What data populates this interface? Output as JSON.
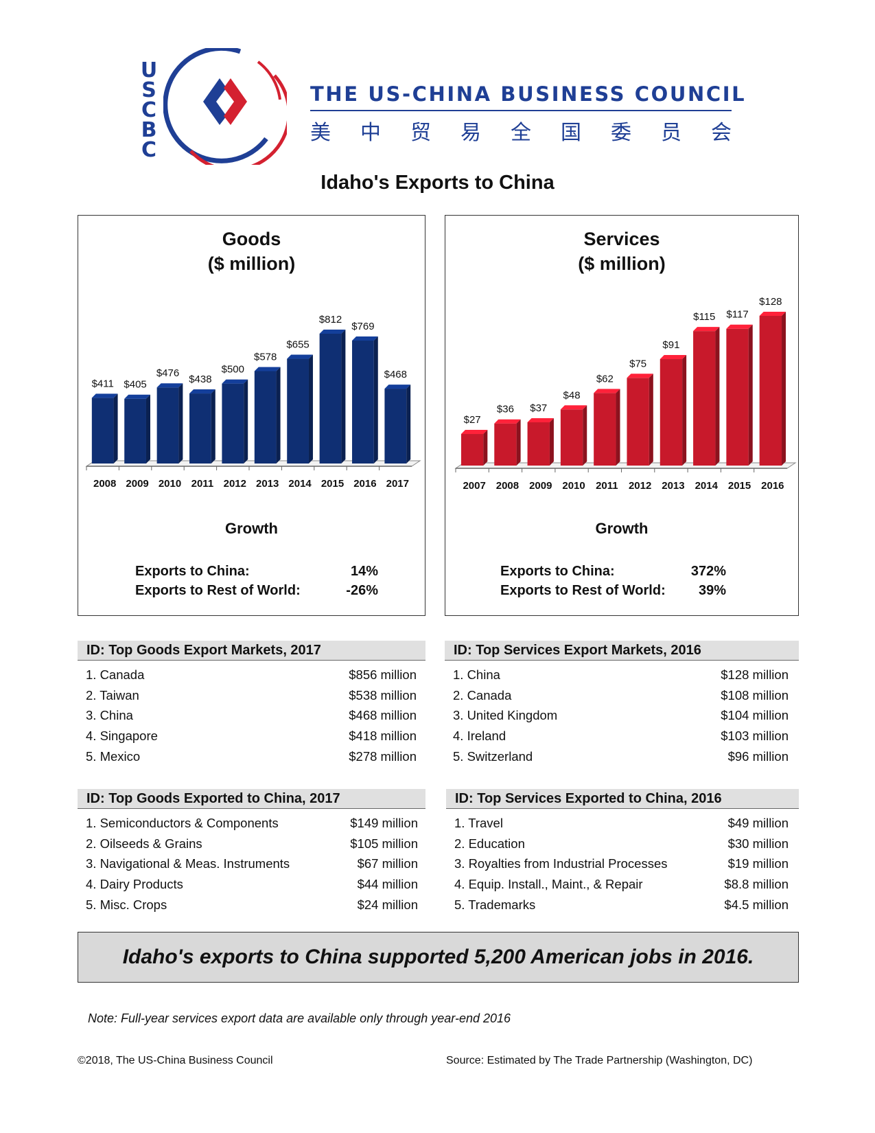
{
  "header": {
    "logo_letters": [
      "U",
      "S",
      "C",
      "B",
      "C"
    ],
    "org_name": "THE US-CHINA BUSINESS COUNCIL",
    "org_name_cn": [
      "美",
      "中",
      "贸",
      "易",
      "全",
      "国",
      "委",
      "员",
      "会"
    ]
  },
  "page_title": "Idaho's Exports to China",
  "colors": {
    "brand_blue": "#1f3f95",
    "brand_red": "#d42130",
    "goods_bar": "#0f2f73",
    "services_bar": "#c8192b"
  },
  "goods": {
    "title_line1": "Goods",
    "title_line2": "($ million)",
    "growth_title": "Growth",
    "growth": [
      {
        "label": "Exports to China:",
        "value": "14%"
      },
      {
        "label": "Exports to Rest of World:",
        "value": "-26%"
      }
    ]
  },
  "services": {
    "title_line1": "Services",
    "title_line2": "($ million)",
    "growth_title": "Growth",
    "growth": [
      {
        "label": "Exports to China:",
        "value": "372%"
      },
      {
        "label": "Exports to Rest of World:",
        "value": "39%"
      }
    ]
  },
  "chart_data": [
    {
      "type": "bar",
      "title": "Goods ($ million)",
      "categories": [
        "2008",
        "2009",
        "2010",
        "2011",
        "2012",
        "2013",
        "2014",
        "2015",
        "2016",
        "2017"
      ],
      "values": [
        411,
        405,
        476,
        438,
        500,
        578,
        655,
        812,
        769,
        468
      ],
      "labels": [
        "$411",
        "$405",
        "$476",
        "$438",
        "$500",
        "$578",
        "$655",
        "$812",
        "$769",
        "$468"
      ],
      "ylim": [
        0,
        812
      ],
      "grid": false
    },
    {
      "type": "bar",
      "title": "Services ($ million)",
      "categories": [
        "2007",
        "2008",
        "2009",
        "2010",
        "2011",
        "2012",
        "2013",
        "2014",
        "2015",
        "2016"
      ],
      "values": [
        27,
        36,
        37,
        48,
        62,
        75,
        91,
        115,
        117,
        128
      ],
      "labels": [
        "$27",
        "$36",
        "$37",
        "$48",
        "$62",
        "$75",
        "$91",
        "$115",
        "$117",
        "$128"
      ],
      "ylim": [
        0,
        128
      ],
      "grid": false
    }
  ],
  "sections": {
    "goods_markets": {
      "header": "ID: Top Goods Export Markets, 2017",
      "rows": [
        {
          "label": "1. Canada",
          "value": "$856 million"
        },
        {
          "label": "2. Taiwan",
          "value": "$538 million"
        },
        {
          "label": "3. China",
          "value": "$468 million"
        },
        {
          "label": "4. Singapore",
          "value": "$418 million"
        },
        {
          "label": "5. Mexico",
          "value": "$278 million"
        }
      ]
    },
    "services_markets": {
      "header": "ID: Top Services Export Markets, 2016",
      "rows": [
        {
          "label": "1. China",
          "value": "$128 million"
        },
        {
          "label": "2. Canada",
          "value": "$108 million"
        },
        {
          "label": "3. United Kingdom",
          "value": "$104 million"
        },
        {
          "label": "4. Ireland",
          "value": "$103 million"
        },
        {
          "label": "5. Switzerland",
          "value": "$96 million"
        }
      ]
    },
    "goods_to_china": {
      "header": "ID: Top Goods Exported to China, 2017",
      "rows": [
        {
          "label": "1. Semiconductors & Components",
          "value": "$149 million"
        },
        {
          "label": "2. Oilseeds & Grains",
          "value": "$105 million"
        },
        {
          "label": "3. Navigational & Meas. Instruments",
          "value": "$67 million"
        },
        {
          "label": "4. Dairy Products",
          "value": "$44 million"
        },
        {
          "label": "5. Misc. Crops",
          "value": "$24 million"
        }
      ]
    },
    "services_to_china": {
      "header": "ID: Top Services Exported to China, 2016",
      "rows": [
        {
          "label": "1. Travel",
          "value": "$49 million"
        },
        {
          "label": "2. Education",
          "value": "$30 million"
        },
        {
          "label": "3. Royalties from Industrial Processes",
          "value": "$19 million"
        },
        {
          "label": "4. Equip. Install., Maint., & Repair",
          "value": "$8.8 million"
        },
        {
          "label": "5. Trademarks",
          "value": "$4.5 million"
        }
      ]
    }
  },
  "jobs_statement": "Idaho's exports to China supported 5,200 American jobs in 2016.",
  "note": "Note: Full-year services export data are available only through year-end 2016",
  "footer": {
    "copyright": "©2018, The US-China Business Council",
    "source": "Source: Estimated by The Trade Partnership (Washington, DC)"
  }
}
